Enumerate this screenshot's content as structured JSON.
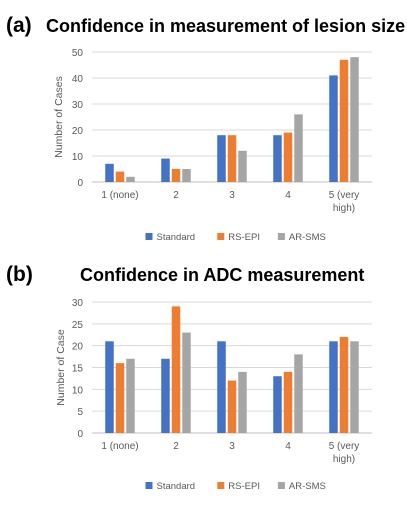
{
  "colors": {
    "standard": "#4472C4",
    "rs_epi": "#ED7D31",
    "ar_sms": "#A5A5A5",
    "grid": "#d9d9d9",
    "text": "#595959"
  },
  "chart_data": [
    {
      "panel_label": "(a)",
      "type": "bar",
      "title": "Confidence in measurement of lesion size",
      "xlabel": "",
      "ylabel": "Number of Cases",
      "ylim": [
        0,
        50
      ],
      "yticks": [
        0,
        10,
        20,
        30,
        40,
        50
      ],
      "grid": true,
      "legend_position": "bottom",
      "categories": [
        [
          "1 (none)"
        ],
        [
          "2"
        ],
        [
          "3"
        ],
        [
          "4"
        ],
        [
          "5 (very",
          "high)"
        ]
      ],
      "series": [
        {
          "name": "Standard",
          "color": "#4472C4",
          "values": [
            7,
            9,
            18,
            18,
            41
          ]
        },
        {
          "name": "RS-EPI",
          "color": "#ED7D31",
          "values": [
            4,
            5,
            18,
            19,
            47
          ]
        },
        {
          "name": "AR-SMS",
          "color": "#A5A5A5",
          "values": [
            2,
            5,
            12,
            26,
            48
          ]
        }
      ]
    },
    {
      "panel_label": "(b)",
      "type": "bar",
      "title": "Confidence in ADC measurement",
      "xlabel": "",
      "ylabel": "Number of Case",
      "ylim": [
        0,
        30
      ],
      "yticks": [
        0,
        5,
        10,
        15,
        20,
        25,
        30
      ],
      "grid": true,
      "legend_position": "bottom",
      "categories": [
        [
          "1 (none)"
        ],
        [
          "2"
        ],
        [
          "3"
        ],
        [
          "4"
        ],
        [
          "5 (very",
          "high)"
        ]
      ],
      "series": [
        {
          "name": "Standard",
          "color": "#4472C4",
          "values": [
            21,
            17,
            21,
            13,
            21
          ]
        },
        {
          "name": "RS-EPI",
          "color": "#ED7D31",
          "values": [
            16,
            29,
            12,
            14,
            22
          ]
        },
        {
          "name": "AR-SMS",
          "color": "#A5A5A5",
          "values": [
            17,
            23,
            14,
            18,
            21
          ]
        }
      ]
    }
  ]
}
